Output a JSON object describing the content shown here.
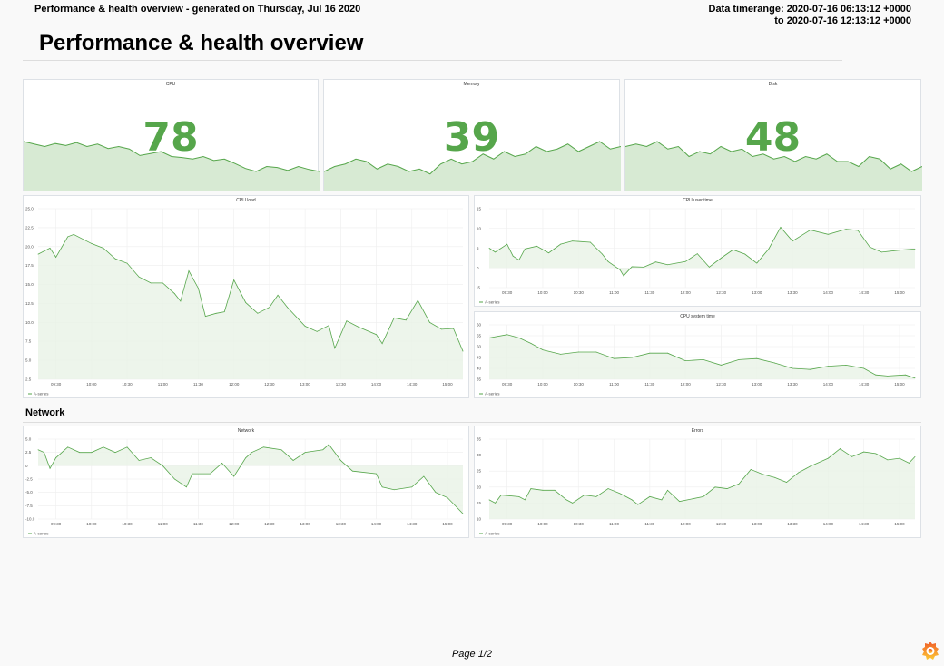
{
  "header": {
    "left": "Performance & health overview - generated on Thursday, Jul 16 2020",
    "range_line1": "Data timerange: 2020-07-16 06:13:12 +0000",
    "range_line2": "to 2020-07-16 12:13:12 +0000"
  },
  "title": "Performance & health overview",
  "section": "Network",
  "footer": "Page 1/2",
  "colors": {
    "series": "#56a64b",
    "fill": "#e9f3e6"
  },
  "stats": [
    {
      "title": "CPU",
      "value": "78",
      "spark": [
        10,
        9.5,
        9,
        9.6,
        9.2,
        9.8,
        9,
        9.5,
        8.6,
        9,
        8.5,
        7.2,
        7.6,
        8,
        7,
        6.8,
        6.5,
        7,
        6.2,
        6.5,
        5.6,
        4.6,
        4,
        5,
        4.8,
        4.2,
        5,
        4.4,
        4
      ]
    },
    {
      "title": "Memory",
      "value": "39",
      "spark": [
        4,
        5,
        5.5,
        6.5,
        6,
        4.5,
        5.5,
        5,
        4,
        4.5,
        3.5,
        5.5,
        6.5,
        5.5,
        6,
        7.5,
        6.5,
        8,
        7,
        7.5,
        9,
        8,
        8.5,
        9.5,
        8,
        9,
        10,
        8.5,
        9
      ]
    },
    {
      "title": "Disk",
      "value": "48",
      "spark": [
        9,
        9.5,
        9,
        10,
        8.5,
        9,
        7,
        8,
        7.5,
        9,
        8,
        8.5,
        7,
        7.5,
        6.5,
        7,
        6,
        7,
        6.5,
        7.5,
        6,
        6,
        5,
        7,
        6.5,
        4.5,
        5.5,
        4,
        5
      ]
    }
  ],
  "chart_data": [
    {
      "type": "area",
      "title": "CPU load",
      "legend": "A-series",
      "ylim": [
        2.5,
        25
      ],
      "yticks": [
        "2.5",
        "5.0",
        "7.5",
        "10.0",
        "12.5",
        "15.0",
        "17.5",
        "20.0",
        "22.5",
        "25.0"
      ],
      "xticks": [
        "09:30",
        "10:00",
        "10:30",
        "11:00",
        "11:30",
        "12:00",
        "12:30",
        "13:00",
        "13:30",
        "14:00",
        "14:30",
        "15:00"
      ],
      "xlim": [
        "09:15",
        "15:13"
      ],
      "points": [
        [
          "09:15",
          19
        ],
        [
          "09:25",
          19.8
        ],
        [
          "09:30",
          18.6
        ],
        [
          "09:40",
          21.3
        ],
        [
          "09:45",
          21.6
        ],
        [
          "10:00",
          20.4
        ],
        [
          "10:10",
          19.8
        ],
        [
          "10:20",
          18.4
        ],
        [
          "10:30",
          17.8
        ],
        [
          "10:40",
          16
        ],
        [
          "10:50",
          15.2
        ],
        [
          "11:00",
          15.2
        ],
        [
          "11:10",
          13.8
        ],
        [
          "11:15",
          12.8
        ],
        [
          "11:22",
          16.8
        ],
        [
          "11:30",
          14.5
        ],
        [
          "11:36",
          10.8
        ],
        [
          "11:45",
          11.2
        ],
        [
          "11:52",
          11.4
        ],
        [
          "12:00",
          15.6
        ],
        [
          "12:10",
          12.6
        ],
        [
          "12:20",
          11.2
        ],
        [
          "12:30",
          12
        ],
        [
          "12:37",
          13.6
        ],
        [
          "12:45",
          12
        ],
        [
          "13:00",
          9.5
        ],
        [
          "13:10",
          8.8
        ],
        [
          "13:20",
          9.6
        ],
        [
          "13:25",
          6.6
        ],
        [
          "13:35",
          10.2
        ],
        [
          "13:45",
          9.4
        ],
        [
          "14:00",
          8.4
        ],
        [
          "14:05",
          7.2
        ],
        [
          "14:15",
          10.6
        ],
        [
          "14:25",
          10.3
        ],
        [
          "14:35",
          12.9
        ],
        [
          "14:45",
          10
        ],
        [
          "14:55",
          9.1
        ],
        [
          "15:05",
          9.2
        ],
        [
          "15:13",
          6.2
        ]
      ]
    },
    {
      "type": "area",
      "title": "CPU user time",
      "legend": "A-series",
      "ylim": [
        -5,
        15
      ],
      "yticks": [
        "-5",
        "0",
        "5",
        "10",
        "15"
      ],
      "xticks": [
        "09:30",
        "10:00",
        "10:30",
        "11:00",
        "11:30",
        "12:00",
        "12:30",
        "13:00",
        "13:30",
        "14:00",
        "14:30",
        "15:00"
      ],
      "xlim": [
        "09:15",
        "15:13"
      ],
      "points": [
        [
          "09:15",
          5
        ],
        [
          "09:20",
          4
        ],
        [
          "09:30",
          6
        ],
        [
          "09:35",
          3
        ],
        [
          "09:40",
          2
        ],
        [
          "09:45",
          4.8
        ],
        [
          "09:55",
          5.5
        ],
        [
          "10:05",
          3.8
        ],
        [
          "10:15",
          6
        ],
        [
          "10:25",
          6.8
        ],
        [
          "10:40",
          6.5
        ],
        [
          "10:50",
          3.5
        ],
        [
          "10:55",
          1.6
        ],
        [
          "11:05",
          -0.5
        ],
        [
          "11:08",
          -2
        ],
        [
          "11:15",
          0.3
        ],
        [
          "11:25",
          0.2
        ],
        [
          "11:35",
          1.5
        ],
        [
          "11:45",
          0.8
        ],
        [
          "12:00",
          1.6
        ],
        [
          "12:10",
          3.6
        ],
        [
          "12:20",
          0.2
        ],
        [
          "12:30",
          2.5
        ],
        [
          "12:40",
          4.6
        ],
        [
          "12:50",
          3.5
        ],
        [
          "13:00",
          1.2
        ],
        [
          "13:10",
          4.8
        ],
        [
          "13:20",
          10.3
        ],
        [
          "13:30",
          6.8
        ],
        [
          "13:45",
          9.6
        ],
        [
          "14:00",
          8.5
        ],
        [
          "14:15",
          9.8
        ],
        [
          "14:25",
          9.5
        ],
        [
          "14:35",
          5.3
        ],
        [
          "14:45",
          4
        ],
        [
          "15:00",
          4.5
        ],
        [
          "15:13",
          4.8
        ]
      ]
    },
    {
      "type": "area",
      "title": "CPU system time",
      "legend": "A-series",
      "ylim": [
        35,
        60
      ],
      "yticks": [
        "35",
        "40",
        "45",
        "50",
        "55",
        "60"
      ],
      "xticks": [
        "09:30",
        "10:00",
        "10:30",
        "11:00",
        "11:30",
        "12:00",
        "12:30",
        "13:00",
        "13:30",
        "14:00",
        "14:30",
        "15:00"
      ],
      "xlim": [
        "09:15",
        "15:13"
      ],
      "points": [
        [
          "09:15",
          54
        ],
        [
          "09:30",
          55.5
        ],
        [
          "09:40",
          54
        ],
        [
          "09:50",
          51.5
        ],
        [
          "10:00",
          48.5
        ],
        [
          "10:15",
          46.5
        ],
        [
          "10:30",
          47.5
        ],
        [
          "10:45",
          47.5
        ],
        [
          "11:00",
          44.5
        ],
        [
          "11:15",
          45
        ],
        [
          "11:30",
          47
        ],
        [
          "11:45",
          47
        ],
        [
          "12:00",
          43.5
        ],
        [
          "12:15",
          44
        ],
        [
          "12:30",
          41.5
        ],
        [
          "12:45",
          44
        ],
        [
          "13:00",
          44.5
        ],
        [
          "13:15",
          42.5
        ],
        [
          "13:30",
          40
        ],
        [
          "13:45",
          39.5
        ],
        [
          "14:00",
          41
        ],
        [
          "14:15",
          41.5
        ],
        [
          "14:30",
          40
        ],
        [
          "14:40",
          37
        ],
        [
          "14:50",
          36.5
        ],
        [
          "15:05",
          37
        ],
        [
          "15:13",
          35.5
        ]
      ]
    },
    {
      "type": "area",
      "title": "Network",
      "legend": "A-series",
      "ylim": [
        -10,
        5
      ],
      "yticks": [
        "-10.0",
        "-7.5",
        "-5.0",
        "-2.5",
        "0",
        "2.5",
        "5.0"
      ],
      "xticks": [
        "09:30",
        "10:00",
        "10:30",
        "11:00",
        "11:30",
        "12:00",
        "12:30",
        "13:00",
        "13:30",
        "14:00",
        "14:30",
        "15:00"
      ],
      "xlim": [
        "09:15",
        "15:13"
      ],
      "points": [
        [
          "09:15",
          3
        ],
        [
          "09:20",
          2.5
        ],
        [
          "09:25",
          -0.5
        ],
        [
          "09:30",
          1.5
        ],
        [
          "09:40",
          3.5
        ],
        [
          "09:50",
          2.5
        ],
        [
          "10:00",
          2.5
        ],
        [
          "10:10",
          3.5
        ],
        [
          "10:20",
          2.5
        ],
        [
          "10:30",
          3.5
        ],
        [
          "10:40",
          1
        ],
        [
          "10:50",
          1.5
        ],
        [
          "11:00",
          0
        ],
        [
          "11:10",
          -2.5
        ],
        [
          "11:20",
          -4
        ],
        [
          "11:25",
          -1.5
        ],
        [
          "11:40",
          -1.5
        ],
        [
          "11:50",
          0.5
        ],
        [
          "12:00",
          -2
        ],
        [
          "12:10",
          1.5
        ],
        [
          "12:15",
          2.5
        ],
        [
          "12:25",
          3.5
        ],
        [
          "12:40",
          3
        ],
        [
          "12:50",
          1
        ],
        [
          "13:00",
          2.5
        ],
        [
          "13:15",
          3
        ],
        [
          "13:20",
          4
        ],
        [
          "13:30",
          1
        ],
        [
          "13:40",
          -1
        ],
        [
          "14:00",
          -1.5
        ],
        [
          "14:05",
          -4
        ],
        [
          "14:15",
          -4.5
        ],
        [
          "14:30",
          -4
        ],
        [
          "14:40",
          -2
        ],
        [
          "14:50",
          -5
        ],
        [
          "15:00",
          -6
        ],
        [
          "15:13",
          -9
        ]
      ]
    },
    {
      "type": "area",
      "title": "Errors",
      "legend": "A-series",
      "ylim": [
        10,
        35
      ],
      "yticks": [
        "10",
        "15",
        "20",
        "25",
        "30",
        "35"
      ],
      "xticks": [
        "09:30",
        "10:00",
        "10:30",
        "11:00",
        "11:30",
        "12:00",
        "12:30",
        "13:00",
        "13:30",
        "14:00",
        "14:30",
        "15:00"
      ],
      "xlim": [
        "09:15",
        "15:13"
      ],
      "points": [
        [
          "09:15",
          16
        ],
        [
          "09:20",
          15
        ],
        [
          "09:25",
          17.5
        ],
        [
          "09:40",
          17
        ],
        [
          "09:45",
          16
        ],
        [
          "09:50",
          19.5
        ],
        [
          "10:00",
          19
        ],
        [
          "10:10",
          19
        ],
        [
          "10:20",
          16
        ],
        [
          "10:25",
          15
        ],
        [
          "10:35",
          17.5
        ],
        [
          "10:45",
          17
        ],
        [
          "10:55",
          19.5
        ],
        [
          "11:05",
          18
        ],
        [
          "11:15",
          16
        ],
        [
          "11:20",
          14.5
        ],
        [
          "11:30",
          17
        ],
        [
          "11:40",
          16
        ],
        [
          "11:45",
          19
        ],
        [
          "11:55",
          15.5
        ],
        [
          "12:15",
          17
        ],
        [
          "12:25",
          20
        ],
        [
          "12:35",
          19.5
        ],
        [
          "12:45",
          21
        ],
        [
          "12:55",
          25.5
        ],
        [
          "13:05",
          24
        ],
        [
          "13:15",
          23
        ],
        [
          "13:25",
          21.5
        ],
        [
          "13:35",
          24.5
        ],
        [
          "13:45",
          26.5
        ],
        [
          "14:00",
          29
        ],
        [
          "14:10",
          32
        ],
        [
          "14:20",
          29.5
        ],
        [
          "14:30",
          31
        ],
        [
          "14:40",
          30.5
        ],
        [
          "14:50",
          28.5
        ],
        [
          "15:00",
          29
        ],
        [
          "15:08",
          27.5
        ],
        [
          "15:13",
          29.5
        ]
      ]
    }
  ]
}
